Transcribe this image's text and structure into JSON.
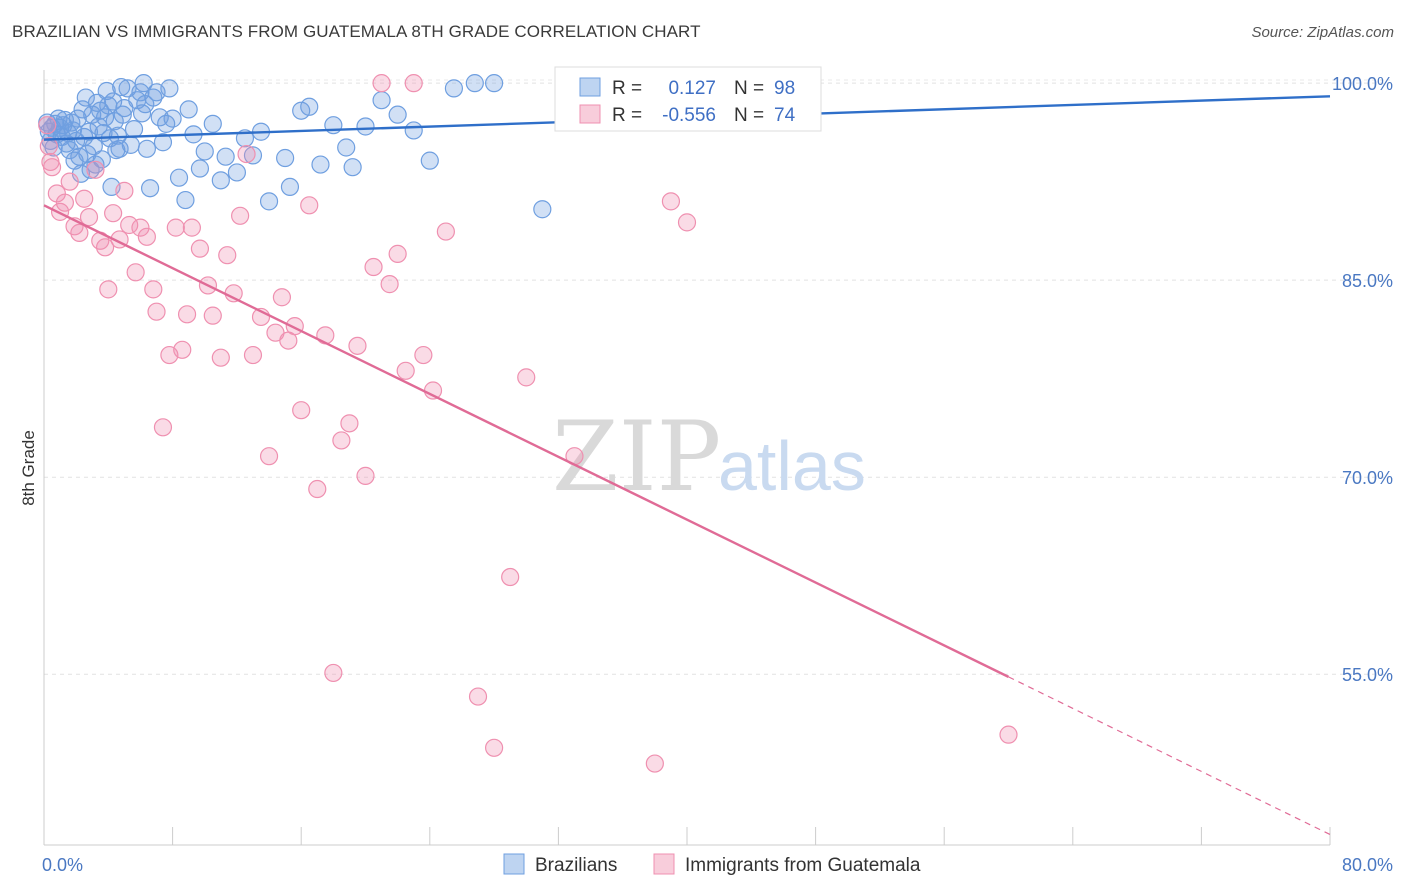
{
  "header": {
    "title": "BRAZILIAN VS IMMIGRANTS FROM GUATEMALA 8TH GRADE CORRELATION CHART",
    "source": "Source: ZipAtlas.com"
  },
  "watermark": {
    "zip": "ZIP",
    "atlas": "atlas"
  },
  "chart_data": {
    "type": "scatter",
    "title": "BRAZILIAN VS IMMIGRANTS FROM GUATEMALA 8TH GRADE CORRELATION CHART",
    "ylabel": "8th Grade",
    "xlim": [
      0,
      80
    ],
    "ylim": [
      42,
      101
    ],
    "y_ticks": [
      {
        "value": 100,
        "label": "100.0%"
      },
      {
        "value": 85,
        "label": "85.0%"
      },
      {
        "value": 70,
        "label": "70.0%"
      },
      {
        "value": 55,
        "label": "55.0%"
      }
    ],
    "x_ticks": [
      {
        "value": 0,
        "label": "0.0%"
      },
      {
        "value": 80,
        "label": "80.0%"
      }
    ],
    "grid": true,
    "legend_position": "bottom-center",
    "stats_box": {
      "r_label": "R =",
      "n_label": "N =",
      "rows": [
        {
          "r": "0.127",
          "n": "98",
          "color": "#6f9fe0"
        },
        {
          "r": "-0.556",
          "n": "74",
          "color": "#ef90b0"
        }
      ]
    },
    "series": [
      {
        "name": "Brazilians",
        "color": "#6f9fe0",
        "line_color": "#2f6fc9",
        "trend": {
          "x0": 0,
          "y0": 95.7,
          "x1": 80,
          "y1": 99.0
        },
        "points": [
          [
            0.2,
            97.0
          ],
          [
            0.3,
            96.3
          ],
          [
            0.4,
            95.6
          ],
          [
            0.5,
            96.6
          ],
          [
            0.6,
            95.1
          ],
          [
            0.7,
            96.9
          ],
          [
            0.8,
            96.1
          ],
          [
            0.9,
            97.3
          ],
          [
            1.0,
            96.6
          ],
          [
            1.1,
            95.9
          ],
          [
            1.2,
            96.8
          ],
          [
            1.3,
            97.2
          ],
          [
            1.4,
            95.4
          ],
          [
            1.5,
            96.2
          ],
          [
            1.6,
            94.9
          ],
          [
            1.7,
            97.0
          ],
          [
            1.8,
            96.4
          ],
          [
            1.9,
            94.1
          ],
          [
            2.0,
            95.6
          ],
          [
            2.1,
            97.3
          ],
          [
            2.2,
            94.4
          ],
          [
            2.3,
            93.1
          ],
          [
            2.4,
            98.0
          ],
          [
            2.5,
            95.9
          ],
          [
            2.6,
            98.9
          ],
          [
            2.7,
            94.6
          ],
          [
            2.8,
            96.3
          ],
          [
            2.9,
            93.4
          ],
          [
            3.0,
            97.6
          ],
          [
            3.1,
            95.2
          ],
          [
            3.2,
            93.8
          ],
          [
            3.3,
            98.5
          ],
          [
            3.4,
            96.7
          ],
          [
            3.5,
            97.9
          ],
          [
            3.6,
            94.2
          ],
          [
            3.7,
            96.2
          ],
          [
            3.8,
            97.4
          ],
          [
            3.9,
            99.4
          ],
          [
            4.0,
            98.3
          ],
          [
            4.1,
            95.8
          ],
          [
            4.2,
            92.1
          ],
          [
            4.3,
            98.6
          ],
          [
            4.4,
            97.1
          ],
          [
            4.5,
            94.9
          ],
          [
            4.6,
            96.0
          ],
          [
            4.7,
            95.0
          ],
          [
            4.8,
            99.7
          ],
          [
            4.9,
            97.6
          ],
          [
            5.0,
            98.1
          ],
          [
            5.2,
            99.6
          ],
          [
            5.4,
            95.3
          ],
          [
            5.6,
            96.5
          ],
          [
            5.8,
            98.7
          ],
          [
            6.0,
            99.3
          ],
          [
            6.1,
            97.7
          ],
          [
            6.2,
            100.0
          ],
          [
            6.3,
            98.4
          ],
          [
            6.4,
            95.0
          ],
          [
            6.6,
            92.0
          ],
          [
            6.8,
            98.9
          ],
          [
            7.0,
            99.3
          ],
          [
            7.2,
            97.4
          ],
          [
            7.4,
            95.5
          ],
          [
            7.6,
            96.9
          ],
          [
            7.8,
            99.6
          ],
          [
            8.0,
            97.3
          ],
          [
            8.4,
            92.8
          ],
          [
            8.8,
            91.1
          ],
          [
            9.0,
            98.0
          ],
          [
            9.3,
            96.1
          ],
          [
            9.7,
            93.5
          ],
          [
            10.0,
            94.8
          ],
          [
            10.5,
            96.9
          ],
          [
            11.0,
            92.6
          ],
          [
            11.3,
            94.4
          ],
          [
            12.0,
            93.2
          ],
          [
            12.5,
            95.8
          ],
          [
            13.0,
            94.5
          ],
          [
            13.5,
            96.3
          ],
          [
            14.0,
            91.0
          ],
          [
            15.0,
            94.3
          ],
          [
            15.3,
            92.1
          ],
          [
            16.0,
            97.9
          ],
          [
            16.5,
            98.2
          ],
          [
            17.2,
            93.8
          ],
          [
            18.0,
            96.8
          ],
          [
            18.8,
            95.1
          ],
          [
            19.2,
            93.6
          ],
          [
            20.0,
            96.7
          ],
          [
            21.0,
            98.7
          ],
          [
            22.0,
            97.6
          ],
          [
            23.0,
            96.4
          ],
          [
            24.0,
            94.1
          ],
          [
            25.5,
            99.6
          ],
          [
            26.8,
            100.0
          ],
          [
            28.0,
            100.0
          ],
          [
            31.0,
            90.4
          ],
          [
            38.0,
            100.0
          ]
        ]
      },
      {
        "name": "Immigrants from Guatemala",
        "color": "#ef90b0",
        "line_color": "#e06b96",
        "trend": {
          "x0": 0,
          "y0": 90.7,
          "x1": 60,
          "y1": 54.8
        },
        "trend_dashed": {
          "x0": 60,
          "y0": 54.8,
          "x1": 80,
          "y1": 42.8
        },
        "points": [
          [
            0.2,
            96.8
          ],
          [
            0.3,
            95.2
          ],
          [
            0.4,
            94.0
          ],
          [
            0.5,
            93.6
          ],
          [
            0.8,
            91.6
          ],
          [
            1.0,
            90.2
          ],
          [
            1.3,
            90.9
          ],
          [
            1.6,
            92.5
          ],
          [
            1.9,
            89.1
          ],
          [
            2.2,
            88.6
          ],
          [
            2.5,
            91.2
          ],
          [
            2.8,
            89.8
          ],
          [
            3.2,
            93.4
          ],
          [
            3.5,
            88.0
          ],
          [
            3.8,
            87.5
          ],
          [
            4.0,
            84.3
          ],
          [
            4.3,
            90.1
          ],
          [
            4.7,
            88.1
          ],
          [
            5.0,
            91.8
          ],
          [
            5.3,
            89.2
          ],
          [
            5.7,
            85.6
          ],
          [
            6.0,
            89.0
          ],
          [
            6.4,
            88.3
          ],
          [
            6.8,
            84.3
          ],
          [
            7.0,
            82.6
          ],
          [
            7.4,
            73.8
          ],
          [
            7.8,
            79.3
          ],
          [
            8.2,
            89.0
          ],
          [
            8.6,
            79.7
          ],
          [
            8.9,
            82.4
          ],
          [
            9.2,
            89.0
          ],
          [
            9.7,
            87.4
          ],
          [
            10.2,
            84.6
          ],
          [
            10.5,
            82.3
          ],
          [
            11.0,
            79.1
          ],
          [
            11.4,
            86.9
          ],
          [
            11.8,
            84.0
          ],
          [
            12.2,
            89.9
          ],
          [
            12.6,
            94.6
          ],
          [
            13.0,
            79.3
          ],
          [
            13.5,
            82.2
          ],
          [
            14.0,
            71.6
          ],
          [
            14.4,
            81.0
          ],
          [
            14.8,
            83.7
          ],
          [
            15.2,
            80.4
          ],
          [
            15.6,
            81.5
          ],
          [
            16.0,
            75.1
          ],
          [
            16.5,
            90.7
          ],
          [
            17.0,
            69.1
          ],
          [
            17.5,
            80.8
          ],
          [
            18.0,
            55.1
          ],
          [
            18.5,
            72.8
          ],
          [
            19.0,
            74.1
          ],
          [
            19.5,
            80.0
          ],
          [
            20.0,
            70.1
          ],
          [
            20.5,
            86.0
          ],
          [
            21.0,
            100.0
          ],
          [
            21.5,
            84.7
          ],
          [
            22.0,
            87.0
          ],
          [
            22.5,
            78.1
          ],
          [
            23.0,
            100.0
          ],
          [
            23.6,
            79.3
          ],
          [
            24.2,
            76.6
          ],
          [
            25.0,
            88.7
          ],
          [
            27.0,
            53.3
          ],
          [
            28.0,
            49.4
          ],
          [
            29.0,
            62.4
          ],
          [
            30.0,
            77.6
          ],
          [
            33.0,
            71.6
          ],
          [
            37.0,
            100.0
          ],
          [
            38.0,
            48.2
          ],
          [
            39.0,
            91.0
          ],
          [
            40.0,
            89.4
          ],
          [
            60.0,
            50.4
          ]
        ]
      }
    ]
  },
  "legend": {
    "items": [
      {
        "label": "Brazilians",
        "color": "#6f9fe0"
      },
      {
        "label": "Immigrants from Guatemala",
        "color": "#ef90b0"
      }
    ]
  }
}
